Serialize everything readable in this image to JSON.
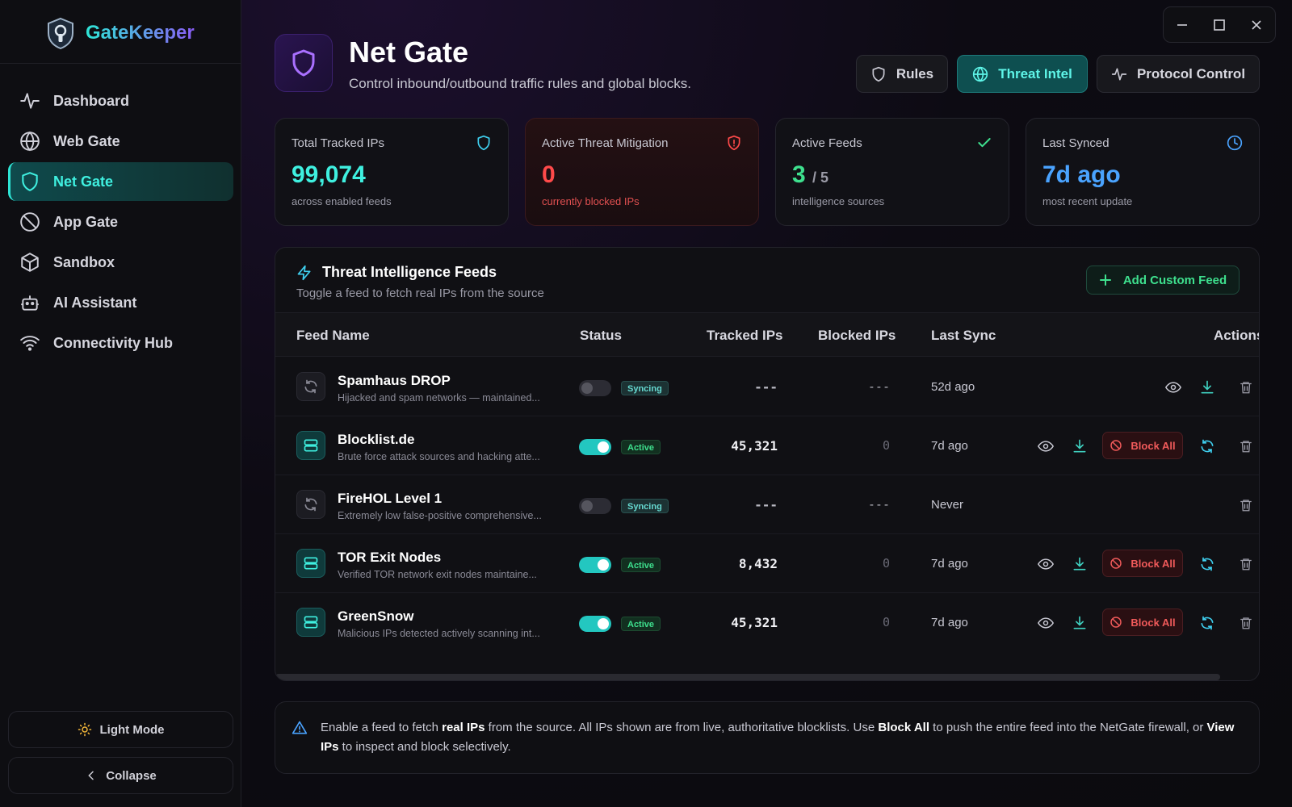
{
  "app": {
    "name": "GateKeeper"
  },
  "sidebar": {
    "items": [
      {
        "label": "Dashboard",
        "icon": "activity-icon"
      },
      {
        "label": "Web Gate",
        "icon": "globe-icon"
      },
      {
        "label": "Net Gate",
        "icon": "shield-icon",
        "active": true
      },
      {
        "label": "App Gate",
        "icon": "ban-icon"
      },
      {
        "label": "Sandbox",
        "icon": "cube-icon"
      },
      {
        "label": "AI Assistant",
        "icon": "bot-icon"
      },
      {
        "label": "Connectivity Hub",
        "icon": "wifi-icon"
      }
    ],
    "theme_label": "Light Mode",
    "collapse_label": "Collapse"
  },
  "header": {
    "title": "Net Gate",
    "subtitle": "Control inbound/outbound traffic rules and global blocks.",
    "tabs": [
      {
        "label": "Rules",
        "icon": "shield-icon"
      },
      {
        "label": "Threat Intel",
        "icon": "globe-icon",
        "active": true
      },
      {
        "label": "Protocol Control",
        "icon": "activity-icon"
      }
    ]
  },
  "stats": [
    {
      "label": "Total Tracked IPs",
      "value": "99,074",
      "sub": "across enabled feeds",
      "color": "#3ff0e0"
    },
    {
      "label": "Active Threat Mitigation",
      "value": "0",
      "sub": "currently blocked IPs",
      "color": "#ff4a4a"
    },
    {
      "label": "Active Feeds",
      "value": "3",
      "value_suffix": "/ 5",
      "sub": "intelligence sources",
      "color": "#3ee08e"
    },
    {
      "label": "Last Synced",
      "value": "7d ago",
      "sub": "most recent update",
      "color": "#4aa3ff"
    }
  ],
  "feeds": {
    "title": "Threat Intelligence Feeds",
    "subtitle": "Toggle a feed to fetch real IPs from the source",
    "add_label": "Add Custom Feed",
    "columns": [
      "Feed Name",
      "Status",
      "Tracked IPs",
      "Blocked IPs",
      "Last Sync",
      "Actions"
    ],
    "block_all_label": "Block All",
    "rows": [
      {
        "name": "Spamhaus DROP",
        "desc": "Hijacked and spam networks — maintained...",
        "enabled": false,
        "status": "Syncing",
        "tracked": "---",
        "blocked": "---",
        "last_sync": "52d ago"
      },
      {
        "name": "Blocklist.de",
        "desc": "Brute force attack sources and hacking atte...",
        "enabled": true,
        "status": "Active",
        "tracked": "45,321",
        "blocked": "0",
        "last_sync": "7d ago"
      },
      {
        "name": "FireHOL Level 1",
        "desc": "Extremely low false-positive comprehensive...",
        "enabled": false,
        "status": "Syncing",
        "tracked": "---",
        "blocked": "---",
        "last_sync": "Never"
      },
      {
        "name": "TOR Exit Nodes",
        "desc": "Verified TOR network exit nodes maintaine...",
        "enabled": true,
        "status": "Active",
        "tracked": "8,432",
        "blocked": "0",
        "last_sync": "7d ago"
      },
      {
        "name": "GreenSnow",
        "desc": "Malicious IPs detected actively scanning int...",
        "enabled": true,
        "status": "Active",
        "tracked": "45,321",
        "blocked": "0",
        "last_sync": "7d ago"
      }
    ]
  },
  "info": {
    "t1": "Enable a feed to fetch ",
    "b1": "real IPs",
    "t2": " from the source. All IPs shown are from live, authoritative blocklists. Use ",
    "b2": "Block All",
    "t3": " to push the entire feed into the NetGate firewall, or ",
    "b3": "View IPs",
    "t4": " to inspect and block selectively."
  }
}
